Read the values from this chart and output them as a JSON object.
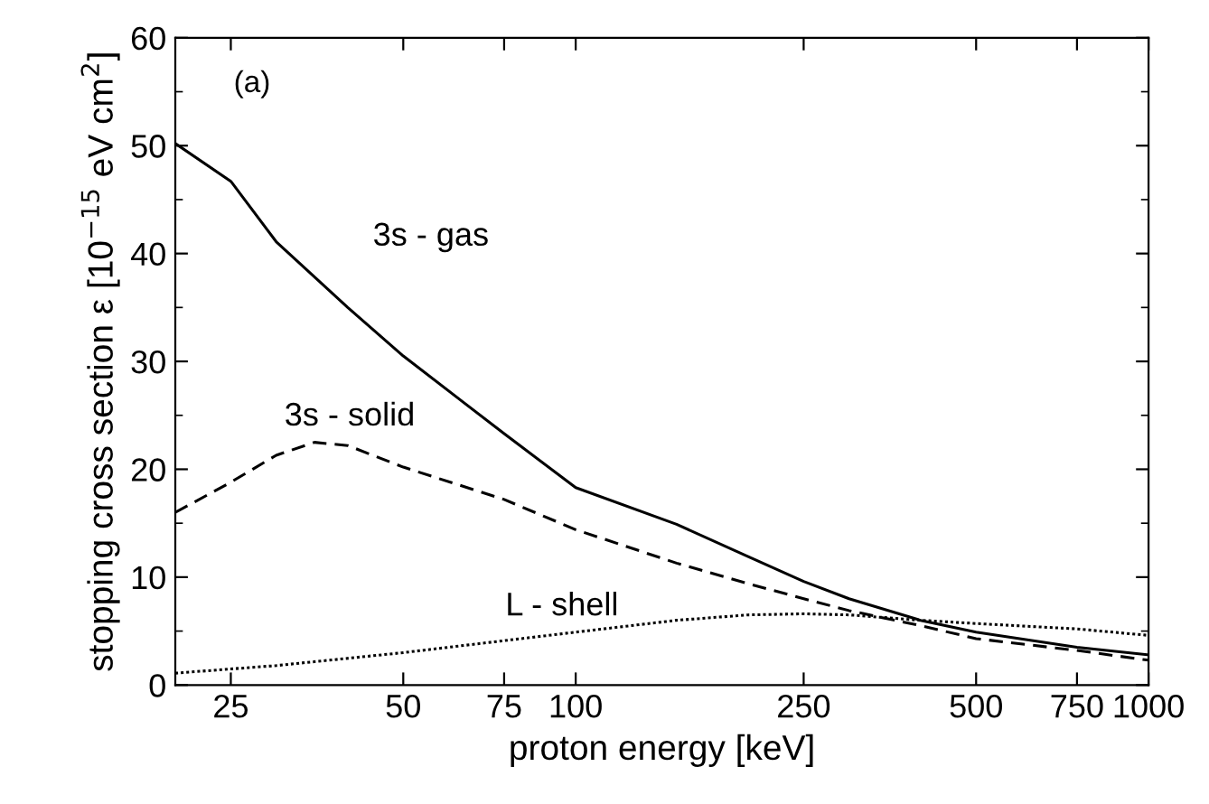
{
  "chart_data": {
    "type": "line",
    "xlabel": "proton energy [keV]",
    "ylabel": "stopping cross section ε [10$^{−15}$ eV cm$^{2}$]",
    "log": "x",
    "xlim": [
      20,
      1000
    ],
    "xticks": [
      25,
      50,
      75,
      100,
      250,
      500,
      750,
      1000
    ],
    "ylim": [
      0,
      60
    ],
    "yticks": [
      0,
      10,
      20,
      30,
      40,
      50,
      60
    ],
    "grid": false,
    "legend": false,
    "annotations": [
      "(a)"
    ],
    "series": [
      {
        "name": "3s - gas",
        "color": "#000000",
        "line_style": "solid",
        "x": [
          20,
          25,
          30,
          40,
          50,
          75,
          100,
          150,
          200,
          250,
          300,
          400,
          500,
          750,
          1000
        ],
        "values": [
          50.2,
          46.7,
          41.1,
          35,
          30.5,
          23.3,
          18.3,
          14.9,
          11.9,
          9.6,
          8.0,
          6.0,
          4.9,
          3.5,
          2.8
        ]
      },
      {
        "name": "3s - solid",
        "color": "#000000",
        "line_style": "dashed",
        "x": [
          20,
          25,
          30,
          35,
          40,
          50,
          75,
          100,
          150,
          200,
          250,
          300,
          400,
          500,
          750,
          1000
        ],
        "values": [
          16.0,
          18.8,
          21.3,
          22.5,
          22.2,
          20.2,
          17.2,
          14.4,
          11.3,
          9.4,
          8.0,
          6.9,
          5.5,
          4.3,
          3.2,
          2.3
        ]
      },
      {
        "name": "L - shell",
        "color": "#000000",
        "line_style": "dotted",
        "x": [
          20,
          30,
          50,
          100,
          150,
          200,
          250,
          300,
          400,
          500,
          750,
          1000
        ],
        "values": [
          1.1,
          1.8,
          3.0,
          4.9,
          6.0,
          6.5,
          6.6,
          6.5,
          6.0,
          5.7,
          5.2,
          4.6
        ]
      }
    ]
  }
}
